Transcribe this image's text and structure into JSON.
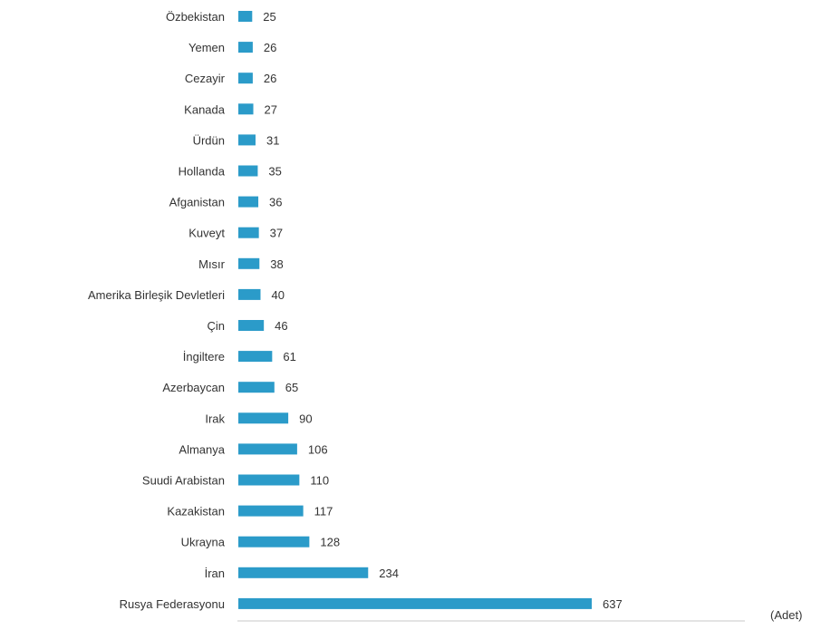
{
  "chart_data": {
    "type": "bar",
    "orientation": "horizontal",
    "categories": [
      "Özbekistan",
      "Yemen",
      "Cezayir",
      "Kanada",
      "Ürdün",
      "Hollanda",
      "Afganistan",
      "Kuveyt",
      "Mısır",
      "Amerika Birleşik Devletleri",
      "Çin",
      "İngiltere",
      "Azerbaycan",
      "Irak",
      "Almanya",
      "Suudi Arabistan",
      "Kazakistan",
      "Ukrayna",
      "İran",
      "Rusya Federasyonu"
    ],
    "values": [
      25,
      26,
      26,
      27,
      31,
      35,
      36,
      37,
      38,
      40,
      46,
      61,
      65,
      90,
      106,
      110,
      117,
      128,
      234,
      637
    ],
    "unit_label": "(Adet)",
    "bar_color": "#2b9bc9",
    "legend": "none",
    "grid": false
  }
}
